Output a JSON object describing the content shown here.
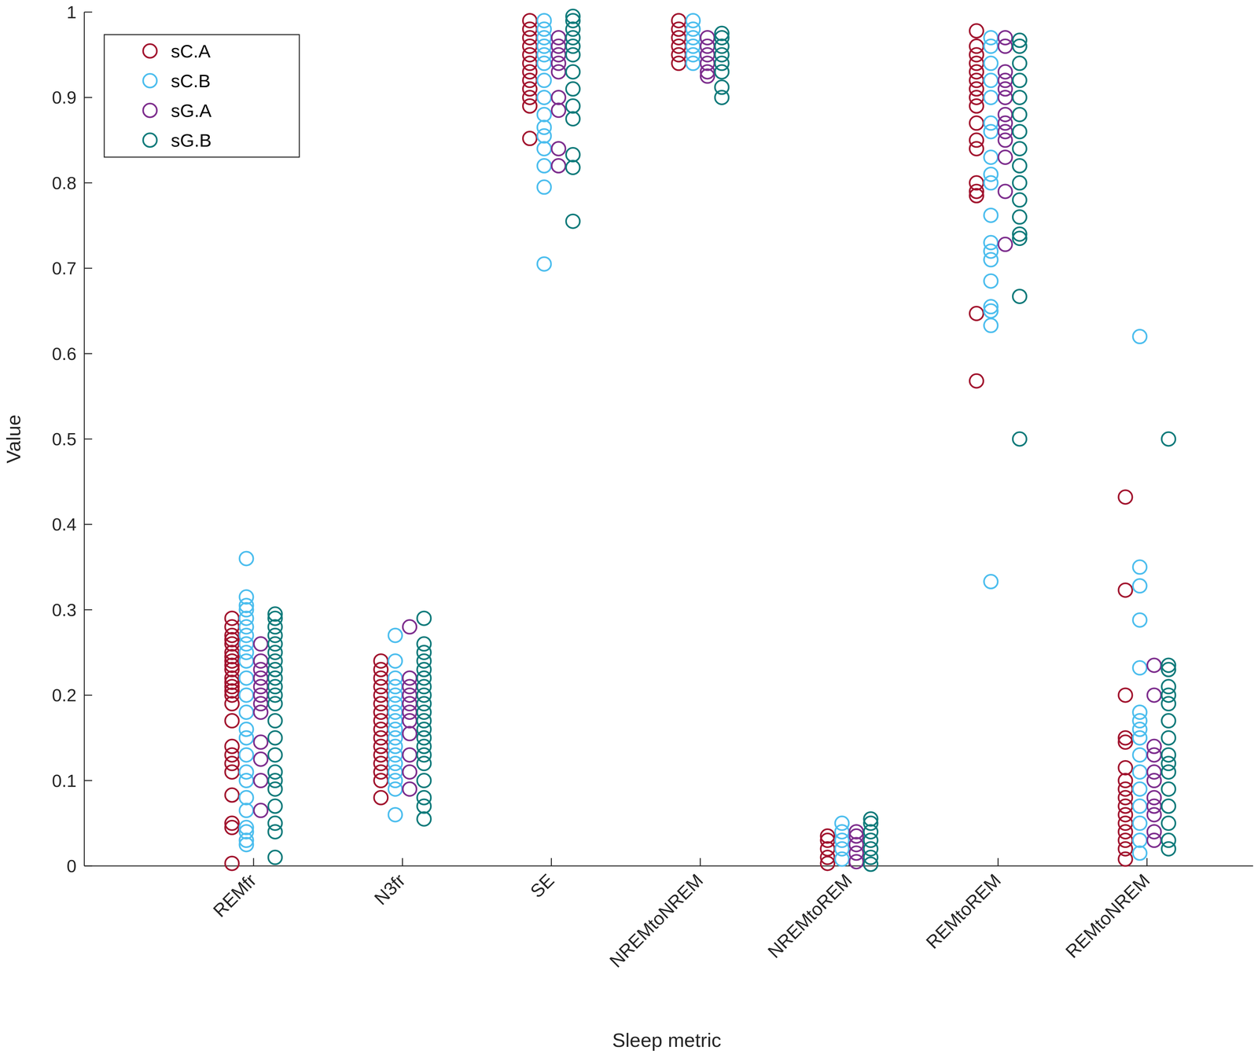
{
  "chart_data": {
    "type": "strip",
    "x_label": "Sleep metric",
    "y_label": "Value",
    "categories": [
      "REMfr",
      "N3fr",
      "SE",
      "NREMtoNREM",
      "NREMtoREM",
      "REMtoREM",
      "REMtoNREM"
    ],
    "ylim": [
      0,
      1
    ],
    "yticks": [
      0,
      0.1,
      0.2,
      0.3,
      0.4,
      0.5,
      0.6,
      0.7,
      0.8,
      0.9,
      1
    ],
    "legend": "upper left",
    "marker": "open-circle",
    "grid": false,
    "series": [
      {
        "name": "sC.A",
        "color": "#a2142f",
        "values": [
          [
            0.003,
            0.045,
            0.05,
            0.083,
            0.11,
            0.12,
            0.13,
            0.14,
            0.17,
            0.19,
            0.2,
            0.205,
            0.21,
            0.215,
            0.22,
            0.23,
            0.235,
            0.24,
            0.245,
            0.25,
            0.26,
            0.265,
            0.27,
            0.28,
            0.29
          ],
          [
            0.08,
            0.1,
            0.11,
            0.12,
            0.13,
            0.14,
            0.15,
            0.16,
            0.17,
            0.18,
            0.19,
            0.2,
            0.21,
            0.22,
            0.23,
            0.24
          ],
          [
            0.852,
            0.89,
            0.9,
            0.91,
            0.92,
            0.93,
            0.94,
            0.95,
            0.96,
            0.97,
            0.98,
            0.99
          ],
          [
            0.94,
            0.95,
            0.96,
            0.97,
            0.98,
            0.99
          ],
          [
            0.003,
            0.01,
            0.02,
            0.03,
            0.035
          ],
          [
            0.568,
            0.647,
            0.785,
            0.79,
            0.8,
            0.84,
            0.85,
            0.87,
            0.89,
            0.9,
            0.91,
            0.92,
            0.93,
            0.94,
            0.95,
            0.96,
            0.978
          ],
          [
            0.008,
            0.02,
            0.03,
            0.04,
            0.05,
            0.06,
            0.07,
            0.08,
            0.09,
            0.1,
            0.115,
            0.145,
            0.15,
            0.2,
            0.323,
            0.432
          ]
        ]
      },
      {
        "name": "sC.B",
        "color": "#4dbeee",
        "values": [
          [
            0.025,
            0.03,
            0.04,
            0.045,
            0.065,
            0.08,
            0.1,
            0.11,
            0.13,
            0.15,
            0.16,
            0.18,
            0.2,
            0.22,
            0.24,
            0.25,
            0.26,
            0.27,
            0.28,
            0.29,
            0.3,
            0.305,
            0.315,
            0.36
          ],
          [
            0.06,
            0.09,
            0.1,
            0.11,
            0.12,
            0.13,
            0.14,
            0.15,
            0.16,
            0.17,
            0.18,
            0.19,
            0.2,
            0.21,
            0.22,
            0.24,
            0.27
          ],
          [
            0.705,
            0.795,
            0.82,
            0.84,
            0.855,
            0.865,
            0.88,
            0.9,
            0.92,
            0.94,
            0.95,
            0.96,
            0.97,
            0.98,
            0.99
          ],
          [
            0.94,
            0.95,
            0.96,
            0.97,
            0.98,
            0.99
          ],
          [
            0.008,
            0.02,
            0.03,
            0.04,
            0.05
          ],
          [
            0.333,
            0.633,
            0.65,
            0.655,
            0.685,
            0.71,
            0.72,
            0.73,
            0.762,
            0.8,
            0.81,
            0.83,
            0.86,
            0.87,
            0.9,
            0.92,
            0.94,
            0.96,
            0.97
          ],
          [
            0.015,
            0.03,
            0.05,
            0.07,
            0.09,
            0.11,
            0.13,
            0.15,
            0.16,
            0.17,
            0.18,
            0.232,
            0.288,
            0.328,
            0.35,
            0.62
          ]
        ]
      },
      {
        "name": "sG.A",
        "color": "#7e2f8e",
        "values": [
          [
            0.065,
            0.1,
            0.125,
            0.145,
            0.18,
            0.19,
            0.2,
            0.21,
            0.22,
            0.23,
            0.24,
            0.26
          ],
          [
            0.09,
            0.11,
            0.13,
            0.155,
            0.17,
            0.18,
            0.19,
            0.2,
            0.21,
            0.22,
            0.28
          ],
          [
            0.82,
            0.84,
            0.885,
            0.9,
            0.93,
            0.94,
            0.95,
            0.96,
            0.97
          ],
          [
            0.925,
            0.93,
            0.94,
            0.95,
            0.96,
            0.97
          ],
          [
            0.005,
            0.015,
            0.025,
            0.035,
            0.04
          ],
          [
            0.728,
            0.79,
            0.83,
            0.85,
            0.86,
            0.87,
            0.88,
            0.9,
            0.91,
            0.92,
            0.93,
            0.96,
            0.97
          ],
          [
            0.03,
            0.04,
            0.06,
            0.07,
            0.08,
            0.1,
            0.11,
            0.13,
            0.14,
            0.2,
            0.235
          ]
        ]
      },
      {
        "name": "sG.B",
        "color": "#0f7b7b",
        "values": [
          [
            0.01,
            0.04,
            0.05,
            0.07,
            0.09,
            0.1,
            0.11,
            0.13,
            0.15,
            0.17,
            0.19,
            0.2,
            0.21,
            0.22,
            0.23,
            0.24,
            0.25,
            0.26,
            0.27,
            0.28,
            0.29,
            0.295
          ],
          [
            0.055,
            0.07,
            0.08,
            0.1,
            0.12,
            0.13,
            0.14,
            0.15,
            0.16,
            0.17,
            0.18,
            0.19,
            0.2,
            0.21,
            0.22,
            0.23,
            0.24,
            0.25,
            0.26,
            0.29
          ],
          [
            0.755,
            0.818,
            0.833,
            0.875,
            0.89,
            0.91,
            0.93,
            0.95,
            0.96,
            0.97,
            0.98,
            0.99,
            0.995
          ],
          [
            0.9,
            0.912,
            0.93,
            0.94,
            0.95,
            0.96,
            0.97,
            0.975
          ],
          [
            0.002,
            0.01,
            0.02,
            0.03,
            0.04,
            0.05,
            0.055
          ],
          [
            0.5,
            0.667,
            0.735,
            0.74,
            0.76,
            0.78,
            0.8,
            0.82,
            0.84,
            0.86,
            0.88,
            0.9,
            0.92,
            0.94,
            0.96,
            0.967
          ],
          [
            0.02,
            0.03,
            0.05,
            0.07,
            0.09,
            0.11,
            0.12,
            0.13,
            0.15,
            0.17,
            0.19,
            0.2,
            0.21,
            0.23,
            0.235,
            0.5
          ]
        ]
      }
    ]
  }
}
